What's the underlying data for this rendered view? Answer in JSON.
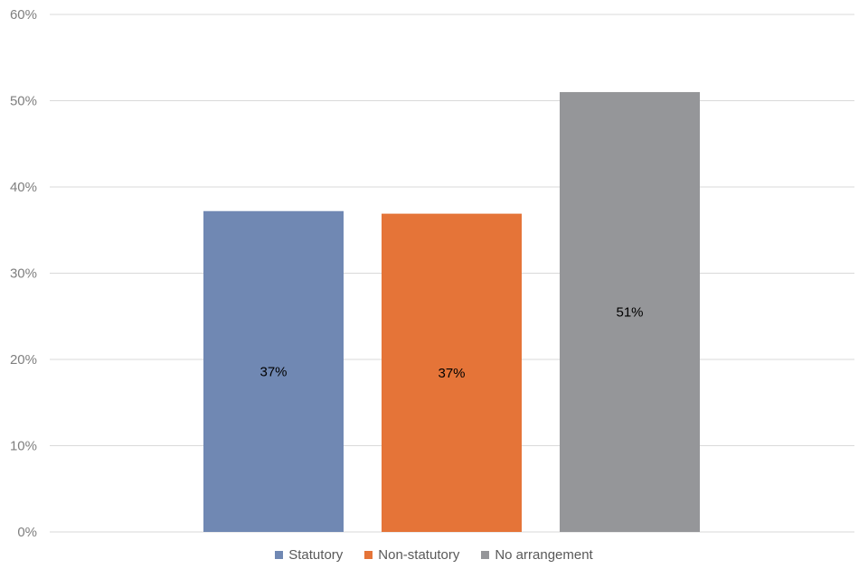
{
  "chart_data": {
    "type": "bar",
    "categories": [
      "Statutory",
      "Non-statutory",
      "No arrangement"
    ],
    "values": [
      37.2,
      36.9,
      51.0
    ],
    "data_labels": [
      "37%",
      "37%",
      "51%"
    ],
    "colors": [
      "#7088b3",
      "#e57438",
      "#959699"
    ],
    "ylim": [
      0,
      60
    ],
    "y_ticks": [
      0,
      10,
      20,
      30,
      40,
      50,
      60
    ],
    "y_tick_labels": [
      "0%",
      "10%",
      "20%",
      "30%",
      "40%",
      "50%",
      "60%"
    ],
    "grid": true,
    "legend_position": "bottom",
    "legend": [
      {
        "label": "Statutory",
        "color": "#7088b3"
      },
      {
        "label": "Non-statutory",
        "color": "#e57438"
      },
      {
        "label": "No arrangement",
        "color": "#959699"
      }
    ]
  }
}
